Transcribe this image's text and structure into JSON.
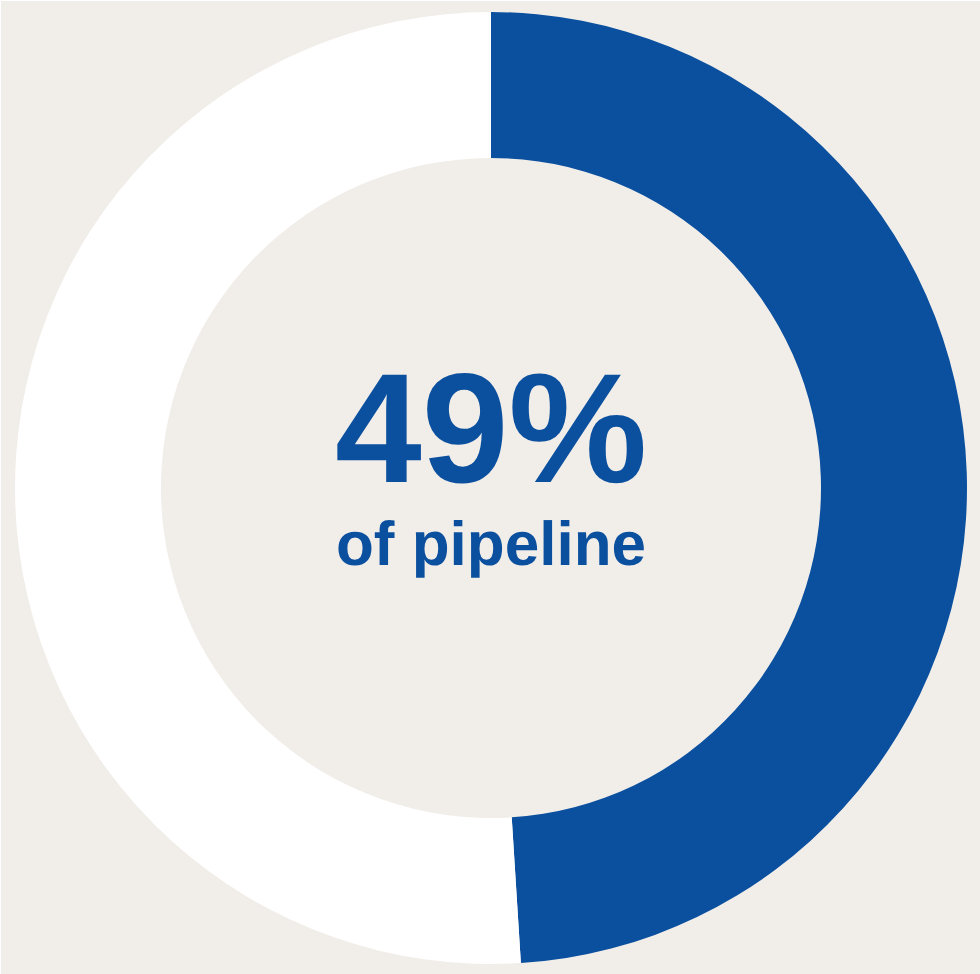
{
  "chart_data": {
    "type": "donut",
    "categories": [
      null,
      null
    ],
    "values": [
      49,
      51
    ],
    "colors": [
      "#0b4f9f",
      "#ffffff"
    ],
    "annotations": [
      "49%",
      "of pipeline"
    ]
  }
}
